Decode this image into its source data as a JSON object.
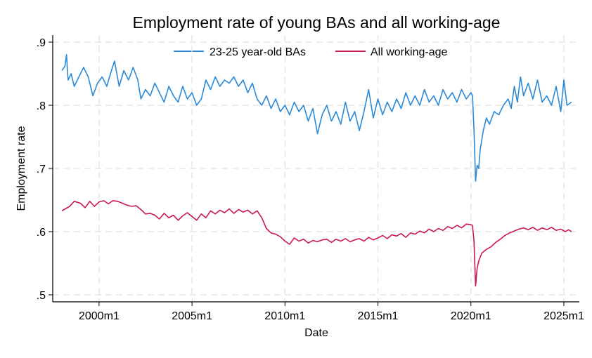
{
  "chart_data": {
    "type": "line",
    "title": "Employment rate of young BAs and all working-age",
    "xlabel": "Date",
    "ylabel": "Employment rate",
    "x_start": "1998m1",
    "x_end": "2025m6",
    "xlim": [
      "1998m1",
      "2025m6"
    ],
    "ylim": [
      0.5,
      0.9
    ],
    "x_ticks": [
      "2000m1",
      "2005m1",
      "2010m1",
      "2015m1",
      "2020m1",
      "2025m1"
    ],
    "y_ticks": [
      {
        "value": 0.5,
        "label": ".5"
      },
      {
        "value": 0.6,
        "label": ".6"
      },
      {
        "value": 0.7,
        "label": ".7"
      },
      {
        "value": 0.8,
        "label": ".8"
      },
      {
        "value": 0.9,
        "label": ".9"
      }
    ],
    "grid": true,
    "legend_position": "top",
    "series": [
      {
        "name": "23-25 year-old BAs",
        "color": "#2b8ad8",
        "points": [
          [
            "1998m1",
            0.855
          ],
          [
            "1998m3",
            0.862
          ],
          [
            "1998m4",
            0.88
          ],
          [
            "1998m5",
            0.84
          ],
          [
            "1998m7",
            0.85
          ],
          [
            "1998m9",
            0.83
          ],
          [
            "1998m12",
            0.845
          ],
          [
            "1999m3",
            0.86
          ],
          [
            "1999m6",
            0.845
          ],
          [
            "1999m9",
            0.815
          ],
          [
            "1999m12",
            0.835
          ],
          [
            "2000m3",
            0.845
          ],
          [
            "2000m6",
            0.83
          ],
          [
            "2000m9",
            0.855
          ],
          [
            "2000m11",
            0.87
          ],
          [
            "2001m2",
            0.83
          ],
          [
            "2001m5",
            0.855
          ],
          [
            "2001m8",
            0.84
          ],
          [
            "2001m11",
            0.86
          ],
          [
            "2002m2",
            0.84
          ],
          [
            "2002m4",
            0.81
          ],
          [
            "2002m7",
            0.825
          ],
          [
            "2002m10",
            0.815
          ],
          [
            "2003m1",
            0.835
          ],
          [
            "2003m4",
            0.82
          ],
          [
            "2003m7",
            0.805
          ],
          [
            "2003m10",
            0.83
          ],
          [
            "2004m1",
            0.815
          ],
          [
            "2004m4",
            0.805
          ],
          [
            "2004m7",
            0.83
          ],
          [
            "2004m10",
            0.81
          ],
          [
            "2005m1",
            0.82
          ],
          [
            "2005m4",
            0.8
          ],
          [
            "2005m7",
            0.81
          ],
          [
            "2005m10",
            0.84
          ],
          [
            "2006m1",
            0.825
          ],
          [
            "2006m4",
            0.845
          ],
          [
            "2006m7",
            0.83
          ],
          [
            "2006m10",
            0.84
          ],
          [
            "2007m1",
            0.835
          ],
          [
            "2007m4",
            0.845
          ],
          [
            "2007m7",
            0.83
          ],
          [
            "2007m10",
            0.84
          ],
          [
            "2008m1",
            0.82
          ],
          [
            "2008m4",
            0.835
          ],
          [
            "2008m7",
            0.81
          ],
          [
            "2008m10",
            0.8
          ],
          [
            "2009m1",
            0.815
          ],
          [
            "2009m4",
            0.795
          ],
          [
            "2009m7",
            0.81
          ],
          [
            "2009m10",
            0.79
          ],
          [
            "2010m1",
            0.8
          ],
          [
            "2010m4",
            0.785
          ],
          [
            "2010m7",
            0.805
          ],
          [
            "2010m10",
            0.79
          ],
          [
            "2011m1",
            0.8
          ],
          [
            "2011m4",
            0.775
          ],
          [
            "2011m7",
            0.795
          ],
          [
            "2011m10",
            0.755
          ],
          [
            "2012m1",
            0.785
          ],
          [
            "2012m4",
            0.8
          ],
          [
            "2012m7",
            0.775
          ],
          [
            "2012m10",
            0.79
          ],
          [
            "2013m1",
            0.77
          ],
          [
            "2013m4",
            0.805
          ],
          [
            "2013m7",
            0.775
          ],
          [
            "2013m10",
            0.79
          ],
          [
            "2014m1",
            0.76
          ],
          [
            "2014m4",
            0.79
          ],
          [
            "2014m7",
            0.825
          ],
          [
            "2014m10",
            0.78
          ],
          [
            "2015m1",
            0.81
          ],
          [
            "2015m4",
            0.785
          ],
          [
            "2015m7",
            0.805
          ],
          [
            "2015m10",
            0.79
          ],
          [
            "2016m1",
            0.81
          ],
          [
            "2016m4",
            0.795
          ],
          [
            "2016m7",
            0.82
          ],
          [
            "2016m10",
            0.8
          ],
          [
            "2017m1",
            0.815
          ],
          [
            "2017m4",
            0.8
          ],
          [
            "2017m7",
            0.825
          ],
          [
            "2017m10",
            0.805
          ],
          [
            "2018m1",
            0.815
          ],
          [
            "2018m4",
            0.8
          ],
          [
            "2018m7",
            0.825
          ],
          [
            "2018m10",
            0.81
          ],
          [
            "2019m1",
            0.82
          ],
          [
            "2019m4",
            0.805
          ],
          [
            "2019m7",
            0.825
          ],
          [
            "2019m10",
            0.81
          ],
          [
            "2020m1",
            0.82
          ],
          [
            "2020m2",
            0.815
          ],
          [
            "2020m3",
            0.76
          ],
          [
            "2020m4",
            0.68
          ],
          [
            "2020m5",
            0.705
          ],
          [
            "2020m6",
            0.7
          ],
          [
            "2020m7",
            0.73
          ],
          [
            "2020m9",
            0.76
          ],
          [
            "2020m11",
            0.78
          ],
          [
            "2021m1",
            0.77
          ],
          [
            "2021m4",
            0.79
          ],
          [
            "2021m7",
            0.785
          ],
          [
            "2021m10",
            0.8
          ],
          [
            "2022m1",
            0.81
          ],
          [
            "2022m3",
            0.795
          ],
          [
            "2022m5",
            0.83
          ],
          [
            "2022m7",
            0.805
          ],
          [
            "2022m9",
            0.845
          ],
          [
            "2022m11",
            0.815
          ],
          [
            "2023m2",
            0.835
          ],
          [
            "2023m5",
            0.81
          ],
          [
            "2023m8",
            0.84
          ],
          [
            "2023m11",
            0.805
          ],
          [
            "2024m2",
            0.815
          ],
          [
            "2024m5",
            0.8
          ],
          [
            "2024m8",
            0.83
          ],
          [
            "2024m11",
            0.79
          ],
          [
            "2025m1",
            0.84
          ],
          [
            "2025m3",
            0.8
          ],
          [
            "2025m6",
            0.805
          ]
        ]
      },
      {
        "name": "All working-age",
        "color": "#c8175a",
        "points": [
          [
            "1998m1",
            0.633
          ],
          [
            "1998m6",
            0.64
          ],
          [
            "1998m9",
            0.648
          ],
          [
            "1999m1",
            0.645
          ],
          [
            "1999m4",
            0.638
          ],
          [
            "1999m7",
            0.648
          ],
          [
            "1999m10",
            0.64
          ],
          [
            "2000m1",
            0.647
          ],
          [
            "2000m4",
            0.649
          ],
          [
            "2000m7",
            0.644
          ],
          [
            "2000m10",
            0.649
          ],
          [
            "2001m1",
            0.648
          ],
          [
            "2001m4",
            0.645
          ],
          [
            "2001m7",
            0.642
          ],
          [
            "2001m10",
            0.64
          ],
          [
            "2002m1",
            0.641
          ],
          [
            "2002m4",
            0.635
          ],
          [
            "2002m7",
            0.628
          ],
          [
            "2002m10",
            0.629
          ],
          [
            "2003m1",
            0.626
          ],
          [
            "2003m4",
            0.62
          ],
          [
            "2003m7",
            0.629
          ],
          [
            "2003m10",
            0.622
          ],
          [
            "2004m1",
            0.626
          ],
          [
            "2004m4",
            0.618
          ],
          [
            "2004m7",
            0.625
          ],
          [
            "2004m10",
            0.63
          ],
          [
            "2005m1",
            0.624
          ],
          [
            "2005m4",
            0.618
          ],
          [
            "2005m7",
            0.628
          ],
          [
            "2005m10",
            0.622
          ],
          [
            "2006m1",
            0.633
          ],
          [
            "2006m4",
            0.628
          ],
          [
            "2006m7",
            0.634
          ],
          [
            "2006m10",
            0.63
          ],
          [
            "2007m1",
            0.636
          ],
          [
            "2007m4",
            0.629
          ],
          [
            "2007m7",
            0.635
          ],
          [
            "2007m10",
            0.631
          ],
          [
            "2008m1",
            0.634
          ],
          [
            "2008m4",
            0.628
          ],
          [
            "2008m7",
            0.633
          ],
          [
            "2008m10",
            0.622
          ],
          [
            "2009m1",
            0.605
          ],
          [
            "2009m4",
            0.598
          ],
          [
            "2009m7",
            0.596
          ],
          [
            "2009m10",
            0.592
          ],
          [
            "2010m1",
            0.585
          ],
          [
            "2010m4",
            0.58
          ],
          [
            "2010m7",
            0.59
          ],
          [
            "2010m10",
            0.585
          ],
          [
            "2011m1",
            0.588
          ],
          [
            "2011m4",
            0.582
          ],
          [
            "2011m7",
            0.586
          ],
          [
            "2011m10",
            0.584
          ],
          [
            "2012m1",
            0.587
          ],
          [
            "2012m4",
            0.588
          ],
          [
            "2012m7",
            0.583
          ],
          [
            "2012m10",
            0.588
          ],
          [
            "2013m1",
            0.585
          ],
          [
            "2013m4",
            0.589
          ],
          [
            "2013m7",
            0.584
          ],
          [
            "2013m10",
            0.587
          ],
          [
            "2014m1",
            0.589
          ],
          [
            "2014m4",
            0.585
          ],
          [
            "2014m7",
            0.591
          ],
          [
            "2014m10",
            0.587
          ],
          [
            "2015m1",
            0.59
          ],
          [
            "2015m4",
            0.594
          ],
          [
            "2015m7",
            0.589
          ],
          [
            "2015m10",
            0.595
          ],
          [
            "2016m1",
            0.593
          ],
          [
            "2016m4",
            0.597
          ],
          [
            "2016m7",
            0.591
          ],
          [
            "2016m10",
            0.598
          ],
          [
            "2017m1",
            0.596
          ],
          [
            "2017m4",
            0.601
          ],
          [
            "2017m7",
            0.598
          ],
          [
            "2017m10",
            0.604
          ],
          [
            "2018m1",
            0.6
          ],
          [
            "2018m4",
            0.605
          ],
          [
            "2018m7",
            0.602
          ],
          [
            "2018m10",
            0.608
          ],
          [
            "2019m1",
            0.605
          ],
          [
            "2019m4",
            0.61
          ],
          [
            "2019m7",
            0.606
          ],
          [
            "2019m10",
            0.612
          ],
          [
            "2020m1",
            0.611
          ],
          [
            "2020m2",
            0.61
          ],
          [
            "2020m3",
            0.585
          ],
          [
            "2020m4",
            0.514
          ],
          [
            "2020m5",
            0.542
          ],
          [
            "2020m6",
            0.553
          ],
          [
            "2020m8",
            0.566
          ],
          [
            "2020m11",
            0.572
          ],
          [
            "2021m2",
            0.576
          ],
          [
            "2021m5",
            0.583
          ],
          [
            "2021m8",
            0.588
          ],
          [
            "2021m11",
            0.594
          ],
          [
            "2022m2",
            0.598
          ],
          [
            "2022m5",
            0.601
          ],
          [
            "2022m8",
            0.604
          ],
          [
            "2022m11",
            0.606
          ],
          [
            "2023m2",
            0.603
          ],
          [
            "2023m5",
            0.607
          ],
          [
            "2023m8",
            0.602
          ],
          [
            "2023m11",
            0.606
          ],
          [
            "2024m2",
            0.603
          ],
          [
            "2024m5",
            0.607
          ],
          [
            "2024m8",
            0.602
          ],
          [
            "2024m11",
            0.604
          ],
          [
            "2025m2",
            0.6
          ],
          [
            "2025m4",
            0.603
          ],
          [
            "2025m6",
            0.6
          ]
        ]
      }
    ]
  }
}
